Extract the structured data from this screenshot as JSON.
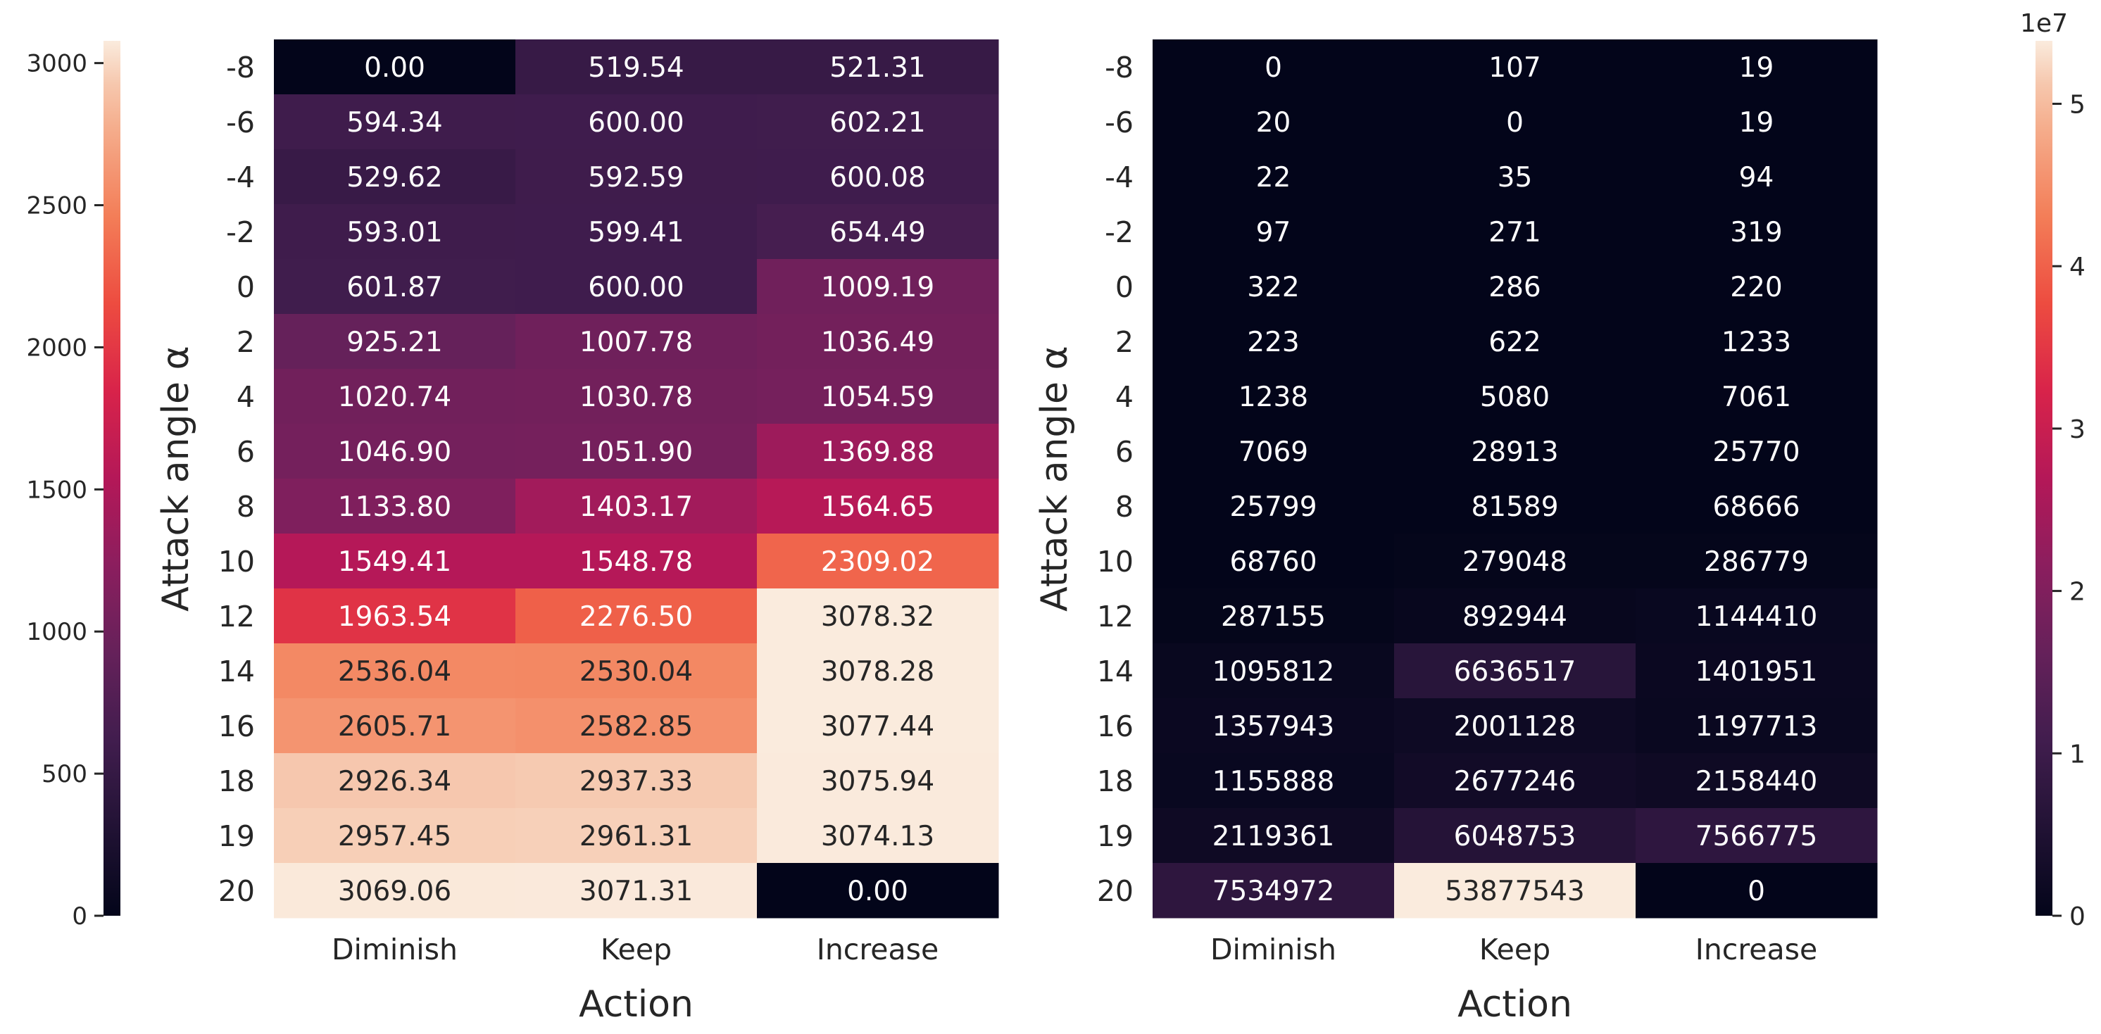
{
  "chart_data": [
    {
      "type": "heatmap",
      "title": "",
      "xlabel": "Action",
      "ylabel": "Attack angle α",
      "x_categories": [
        "Diminish",
        "Keep",
        "Increase"
      ],
      "y_categories": [
        "-8",
        "-6",
        "-4",
        "-2",
        "0",
        "2",
        "4",
        "6",
        "8",
        "10",
        "12",
        "14",
        "16",
        "18",
        "19",
        "20"
      ],
      "values": [
        [
          0.0,
          519.54,
          521.31
        ],
        [
          594.34,
          600.0,
          602.21
        ],
        [
          529.62,
          592.59,
          600.08
        ],
        [
          593.01,
          599.41,
          654.49
        ],
        [
          601.87,
          600.0,
          1009.19
        ],
        [
          925.21,
          1007.78,
          1036.49
        ],
        [
          1020.74,
          1030.78,
          1054.59
        ],
        [
          1046.9,
          1051.9,
          1369.88
        ],
        [
          1133.8,
          1403.17,
          1564.65
        ],
        [
          1549.41,
          1548.78,
          2309.02
        ],
        [
          1963.54,
          2276.5,
          3078.32
        ],
        [
          2536.04,
          2530.04,
          3078.28
        ],
        [
          2605.71,
          2582.85,
          3077.44
        ],
        [
          2926.34,
          2937.33,
          3075.94
        ],
        [
          2957.45,
          2961.31,
          3074.13
        ],
        [
          3069.06,
          3071.31,
          0.0
        ]
      ],
      "value_format": "fixed2",
      "colormap": "rocket",
      "vmin": 0,
      "vmax": 3078.32,
      "colorbar": {
        "position": "left",
        "ticks": [
          0,
          500,
          1000,
          1500,
          2000,
          2500,
          3000
        ]
      }
    },
    {
      "type": "heatmap",
      "title": "",
      "xlabel": "Action",
      "ylabel": "Attack angle α",
      "x_categories": [
        "Diminish",
        "Keep",
        "Increase"
      ],
      "y_categories": [
        "-8",
        "-6",
        "-4",
        "-2",
        "0",
        "2",
        "4",
        "6",
        "8",
        "10",
        "12",
        "14",
        "16",
        "18",
        "19",
        "20"
      ],
      "values": [
        [
          0,
          107,
          19
        ],
        [
          20,
          0,
          19
        ],
        [
          22,
          35,
          94
        ],
        [
          97,
          271,
          319
        ],
        [
          322,
          286,
          220
        ],
        [
          223,
          622,
          1233
        ],
        [
          1238,
          5080,
          7061
        ],
        [
          7069,
          28913,
          25770
        ],
        [
          25799,
          81589,
          68666
        ],
        [
          68760,
          279048,
          286779
        ],
        [
          287155,
          892944,
          1144410
        ],
        [
          1095812,
          6636517,
          1401951
        ],
        [
          1357943,
          2001128,
          1197713
        ],
        [
          1155888,
          2677246,
          2158440
        ],
        [
          2119361,
          6048753,
          7566775
        ],
        [
          7534972,
          53877543,
          0
        ]
      ],
      "value_format": "int",
      "colormap": "rocket",
      "vmin": 0,
      "vmax": 53877543,
      "colorbar": {
        "position": "right",
        "ticks": [
          0,
          1,
          2,
          3,
          4,
          5
        ],
        "scale_label": "1e7"
      }
    }
  ]
}
